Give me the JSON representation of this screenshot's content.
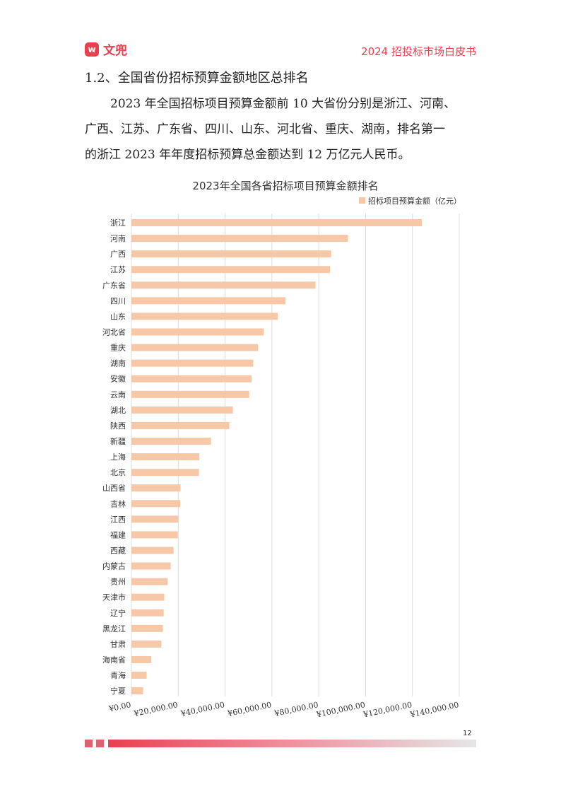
{
  "header": {
    "logo_mark": "w",
    "logo_text": "文兜",
    "doc_title": "2024 招投标市场白皮书"
  },
  "section": {
    "heading": "1.2、全国省份招标预算金额地区总排名",
    "paragraphs": [
      "2023 年全国招标项目预算金额前 10 大省份分别是浙江、河南、",
      "广西、江苏、广东省、四川、山东、河北省、重庆、湖南，排名第一",
      "的浙江 2023 年年度招标预算总金额达到 12 万亿元人民币。"
    ]
  },
  "chart_data": {
    "type": "bar",
    "orientation": "horizontal",
    "title": "2023年全国各省招标项目预算金额排名",
    "legend": "top-right",
    "bar_color": "#f6c8a8",
    "grid": true,
    "xlim": [
      0,
      140000
    ],
    "x_tick_labels": [
      "¥0.00",
      "¥20,000.00",
      "¥40,000.00",
      "¥60,000.00",
      "¥80,000.00",
      "¥100,000.00",
      "¥120,000.00",
      "¥140,000.00"
    ],
    "categories": [
      "浙江",
      "河南",
      "广西",
      "江苏",
      "广东省",
      "四川",
      "山东",
      "河北省",
      "重庆",
      "湖南",
      "安徽",
      "云南",
      "湖北",
      "陕西",
      "新疆",
      "上海",
      "北京",
      "山西省",
      "吉林",
      "江西",
      "福建",
      "西藏",
      "内蒙古",
      "贵州",
      "天津市",
      "辽宁",
      "黑龙江",
      "甘肃",
      "海南省",
      "青海",
      "宁夏"
    ],
    "series": [
      {
        "name": "招标项目预算金额（亿元）",
        "values": [
          124000,
          92500,
          85300,
          84800,
          78600,
          65800,
          62500,
          56500,
          54000,
          52000,
          51300,
          50300,
          43300,
          41800,
          34000,
          29000,
          28800,
          21000,
          20800,
          20000,
          19800,
          18000,
          16800,
          15500,
          14000,
          13800,
          13400,
          12800,
          8500,
          6500,
          5000
        ]
      }
    ]
  },
  "footer": {
    "page_number": "12"
  }
}
